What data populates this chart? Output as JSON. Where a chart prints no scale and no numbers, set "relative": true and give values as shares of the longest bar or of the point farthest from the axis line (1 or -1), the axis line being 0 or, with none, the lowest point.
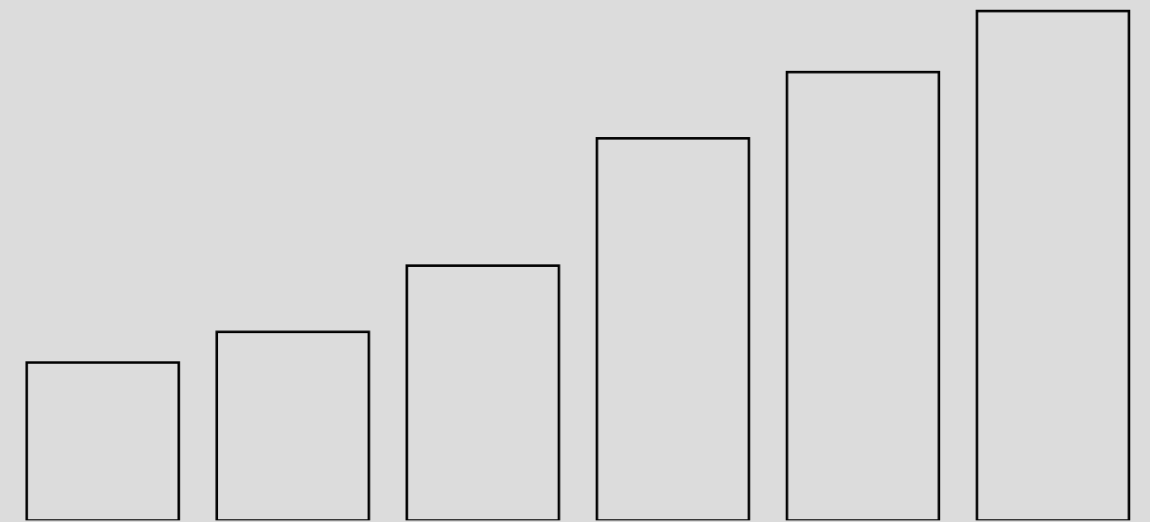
{
  "chart_data": {
    "type": "bar",
    "relative": true,
    "categories": [
      null,
      null,
      null,
      null,
      null,
      null
    ],
    "values": [
      0.31,
      0.37,
      0.5,
      0.75,
      0.88,
      1
    ],
    "color": "#dcdcdc",
    "grid": false,
    "legend": false
  }
}
